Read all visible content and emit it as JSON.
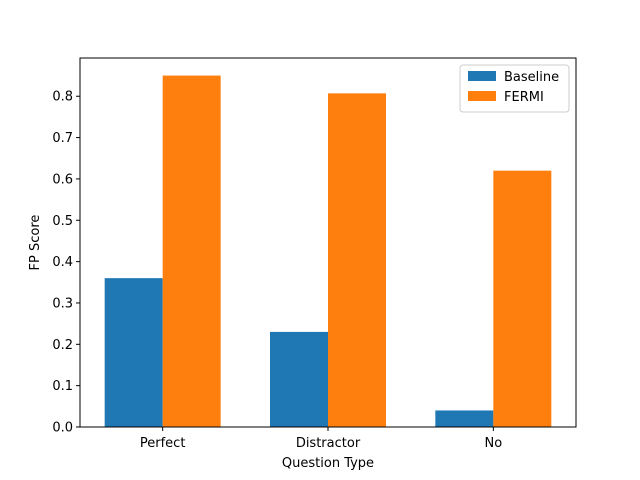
{
  "chart_data": {
    "type": "bar",
    "title": "",
    "xlabel": "Question Type",
    "ylabel": "FP Score",
    "categories": [
      "Perfect",
      "Distractor",
      "No"
    ],
    "series": [
      {
        "name": "Baseline",
        "values": [
          0.36,
          0.23,
          0.04
        ],
        "color": "#1f77b4"
      },
      {
        "name": "FERMI",
        "values": [
          0.85,
          0.807,
          0.62
        ],
        "color": "#ff7f0e"
      }
    ],
    "ylim": [
      0,
      0.8925
    ],
    "yticks": [
      0.0,
      0.1,
      0.2,
      0.3,
      0.4,
      0.5,
      0.6,
      0.7,
      0.8
    ],
    "ytick_labels": [
      "0.0",
      "0.1",
      "0.2",
      "0.3",
      "0.4",
      "0.5",
      "0.6",
      "0.7",
      "0.8"
    ],
    "grid": false,
    "legend_position": "top-right"
  }
}
